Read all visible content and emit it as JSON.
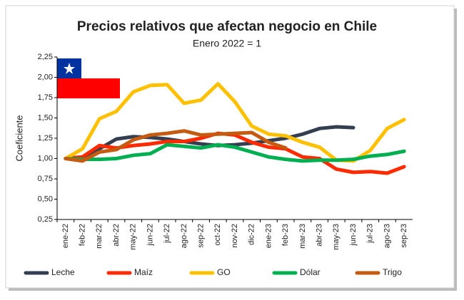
{
  "chart_data": {
    "type": "line",
    "title": "Precios relativos que afectan negocio en Chile",
    "subtitle": "Enero 2022 = 1",
    "y_label": "Coeficiente",
    "categories": [
      "ene-22",
      "feb-22",
      "mar-22",
      "abr-22",
      "may-22",
      "jun-22",
      "jul-22",
      "ago-22",
      "sep-22",
      "oct-22",
      "nov-22",
      "dic-22",
      "ene-23",
      "feb-23",
      "mar-23",
      "abr-23",
      "may-23",
      "jun-23",
      "jul-23",
      "ago-23",
      "sep-23"
    ],
    "series": [
      {
        "name": "Leche",
        "color": "#333f50",
        "values": [
          1.0,
          1.02,
          1.12,
          1.24,
          1.27,
          1.26,
          1.24,
          1.21,
          1.18,
          1.16,
          1.17,
          1.19,
          1.22,
          1.25,
          1.3,
          1.37,
          1.39,
          1.38,
          null,
          null,
          null
        ]
      },
      {
        "name": "Maíz",
        "color": "#ff2a00",
        "values": [
          1.0,
          1.02,
          1.16,
          1.13,
          1.16,
          1.18,
          1.21,
          1.21,
          1.25,
          1.31,
          1.29,
          1.2,
          1.14,
          1.12,
          1.02,
          1.0,
          0.87,
          0.83,
          0.84,
          0.82,
          0.9
        ]
      },
      {
        "name": "GO",
        "color": "#ffc000",
        "values": [
          1.0,
          1.12,
          1.49,
          1.58,
          1.82,
          1.9,
          1.91,
          1.68,
          1.72,
          1.92,
          1.7,
          1.4,
          1.3,
          1.28,
          1.2,
          1.14,
          0.98,
          0.97,
          1.1,
          1.37,
          1.48
        ]
      },
      {
        "name": "Dólar",
        "color": "#00b050",
        "values": [
          1.0,
          0.99,
          0.99,
          1.0,
          1.04,
          1.06,
          1.17,
          1.15,
          1.13,
          1.17,
          1.14,
          1.08,
          1.02,
          0.99,
          0.97,
          0.98,
          0.98,
          0.99,
          1.03,
          1.05,
          1.09
        ]
      },
      {
        "name": "Trigo",
        "color": "#c55a11",
        "values": [
          1.0,
          0.97,
          1.08,
          1.11,
          1.23,
          1.29,
          1.31,
          1.34,
          1.29,
          1.3,
          1.31,
          1.32,
          1.2,
          1.13,
          null,
          null,
          null,
          null,
          null,
          null,
          null
        ]
      }
    ],
    "ylim": [
      0.25,
      2.25
    ],
    "yticks": [
      {
        "value": 0.25,
        "label": "0,25"
      },
      {
        "value": 0.5,
        "label": "0,50"
      },
      {
        "value": 0.75,
        "label": "0,75"
      },
      {
        "value": 1,
        "label": "1,00"
      },
      {
        "value": 1.25,
        "label": "1,25"
      },
      {
        "value": 1.5,
        "label": "1,50"
      },
      {
        "value": 1.75,
        "label": "1,75"
      },
      {
        "value": 2,
        "label": "2,00"
      },
      {
        "value": 2.25,
        "label": "2,25"
      }
    ],
    "grid": false,
    "legend": "bottom"
  }
}
